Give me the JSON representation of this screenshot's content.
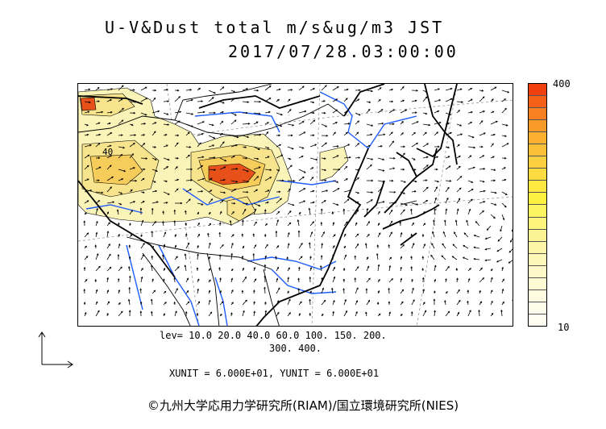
{
  "title": {
    "line1": "U-V&Dust total m/s&ug/m3 JST",
    "line2": "2017/07/28.03:00:00"
  },
  "levels": {
    "line1": "lev= 10.0 20.0 40.0 60.0 100. 150. 200.",
    "line2": "300. 400."
  },
  "units": "XUNIT = 6.000E+01, YUNIT = 6.000E+01",
  "colorbar": {
    "max_label": "400",
    "min_label": "10",
    "colors_top_to_bottom": [
      "#f04010",
      "#f46018",
      "#f88020",
      "#fa9a28",
      "#fcb030",
      "#fcc038",
      "#fcd040",
      "#fddc40",
      "#fce840",
      "#fcf040",
      "#fcf460",
      "#fcf47c",
      "#fcf494",
      "#fdf6a8",
      "#fdf7b8",
      "#fef8c8",
      "#fefad4",
      "#fefbe0",
      "#fefcea",
      "#fffdf2"
    ]
  },
  "map": {
    "contour_label": "40",
    "coastline_color": "#000000",
    "river_color": "#1e5cff",
    "dust_colors": {
      "low": "#fbf4b8",
      "mid": "#f8e48c",
      "high": "#f6cc5a",
      "max": "#e8501a"
    }
  },
  "credit": "©九州大学応用力学研究所(RIAM)/国立環境研究所(NIES)"
}
